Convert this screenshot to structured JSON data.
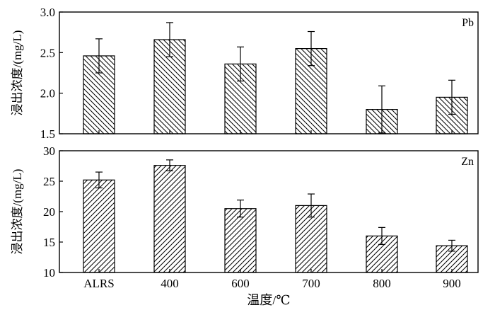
{
  "chart_data": [
    {
      "type": "bar",
      "panel_label": "Pb",
      "categories": [
        "ALRS",
        "400",
        "600",
        "700",
        "800",
        "900"
      ],
      "values": [
        2.46,
        2.66,
        2.36,
        2.55,
        1.8,
        1.95
      ],
      "errors": [
        0.21,
        0.21,
        0.21,
        0.21,
        0.29,
        0.21
      ],
      "ylabel": "浸出浓度/(mg/L)",
      "ylim": [
        1.5,
        3.0
      ],
      "yticks": [
        "1.5",
        "2.0",
        "2.5",
        "3.0"
      ],
      "hatch": "backslash"
    },
    {
      "type": "bar",
      "panel_label": "Zn",
      "categories": [
        "ALRS",
        "400",
        "600",
        "700",
        "800",
        "900"
      ],
      "values": [
        25.2,
        27.6,
        20.5,
        21.0,
        16.0,
        14.4
      ],
      "errors": [
        1.3,
        0.9,
        1.4,
        1.9,
        1.4,
        0.9
      ],
      "ylabel": "浸出浓度/(mg/L)",
      "xlabel": "温度/℃",
      "ylim": [
        10,
        30
      ],
      "yticks": [
        "10",
        "15",
        "20",
        "25",
        "30"
      ],
      "hatch": "slash"
    }
  ]
}
